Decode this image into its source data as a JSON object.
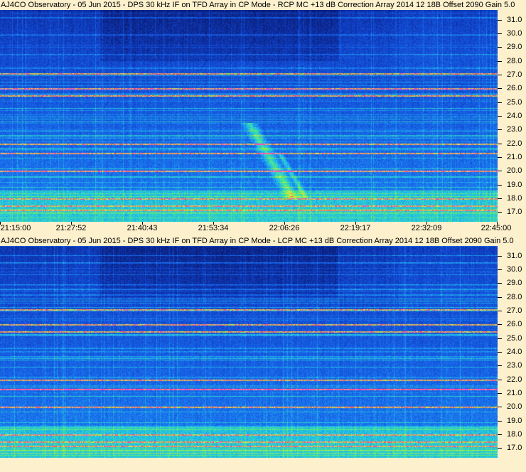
{
  "panels": [
    {
      "title": "AJ4CO Observatory - 05 Jun 2015 - DPS 30 kHz IF on TFD Array in CP Mode - RCP  MC +13 dB   Correction Array 2014 12 18B    Offset 2090   Gain 5.0",
      "polarization": "RCP"
    },
    {
      "title": "AJ4CO Observatory - 05 Jun 2015 - DPS 30 kHz IF on TFD Array in CP Mode - LCP  MC +13 dB   Correction Array 2014 12 18B    Offset 2090   Gain 5.0",
      "polarization": "LCP"
    }
  ],
  "time_labels": [
    "21:15:00",
    "21:27:52",
    "21:40:43",
    "21:53:34",
    "22:06:26",
    "22:19:17",
    "22:32:09",
    "22:45:00"
  ],
  "freq_labels": [
    "31.0",
    "30.0",
    "29.0",
    "28.0",
    "27.0",
    "26.0",
    "25.0",
    "24.0",
    "23.0",
    "22.0",
    "21.0",
    "20.0",
    "19.0",
    "18.0",
    "17.0"
  ],
  "chart_data": [
    {
      "type": "heatmap",
      "title": "AJ4CO Observatory - 05 Jun 2015 - DPS 30 kHz IF on TFD Array in CP Mode - RCP  MC +13 dB   Correction Array 2014 12 18B    Offset 2090   Gain 5.0",
      "x_ticks": [
        "21:15:00",
        "21:27:52",
        "21:40:43",
        "21:53:34",
        "22:06:26",
        "22:19:17",
        "22:32:09",
        "22:45:00"
      ],
      "xlim": [
        "21:15:00",
        "22:45:00"
      ],
      "y_ticks": [
        31.0,
        30.0,
        29.0,
        28.0,
        27.0,
        26.0,
        25.0,
        24.0,
        23.0,
        22.0,
        21.0,
        20.0,
        19.0,
        18.0,
        17.0
      ],
      "ylim": [
        16.3,
        31.7
      ],
      "colormap": [
        "#0a1a6e",
        "#1040c8",
        "#1a70f0",
        "#22c8e8",
        "#60f060",
        "#f0f040",
        "#ff5050",
        "#ff40ff"
      ],
      "interference_lines_mhz": [
        27.1,
        26.0,
        25.5,
        22.0,
        21.3,
        20.0,
        18.0,
        17.5,
        17.2
      ],
      "burst": {
        "time_range": [
          "22:00:00",
          "22:08:00"
        ],
        "freq_range": [
          18.0,
          23.5
        ],
        "character": "drifting emission, higher to lower frequency"
      }
    },
    {
      "type": "heatmap",
      "title": "AJ4CO Observatory - 05 Jun 2015 - DPS 30 kHz IF on TFD Array in CP Mode - LCP  MC +13 dB   Correction Array 2014 12 18B    Offset 2090   Gain 5.0",
      "x_ticks": [
        "21:15:00",
        "21:27:52",
        "21:40:43",
        "21:53:34",
        "22:06:26",
        "22:19:17",
        "22:32:09",
        "22:45:00"
      ],
      "xlim": [
        "21:15:00",
        "22:45:00"
      ],
      "y_ticks": [
        31.0,
        30.0,
        29.0,
        28.0,
        27.0,
        26.0,
        25.0,
        24.0,
        23.0,
        22.0,
        21.0,
        20.0,
        19.0,
        18.0,
        17.0
      ],
      "ylim": [
        16.3,
        31.7
      ],
      "colormap": [
        "#0a1a6e",
        "#1040c8",
        "#1a70f0",
        "#22c8e8",
        "#60f060",
        "#f0f040",
        "#ff5050",
        "#ff40ff"
      ],
      "interference_lines_mhz": [
        27.1,
        26.0,
        25.5,
        22.0,
        21.3,
        20.0,
        18.0,
        17.5,
        17.2
      ]
    }
  ]
}
